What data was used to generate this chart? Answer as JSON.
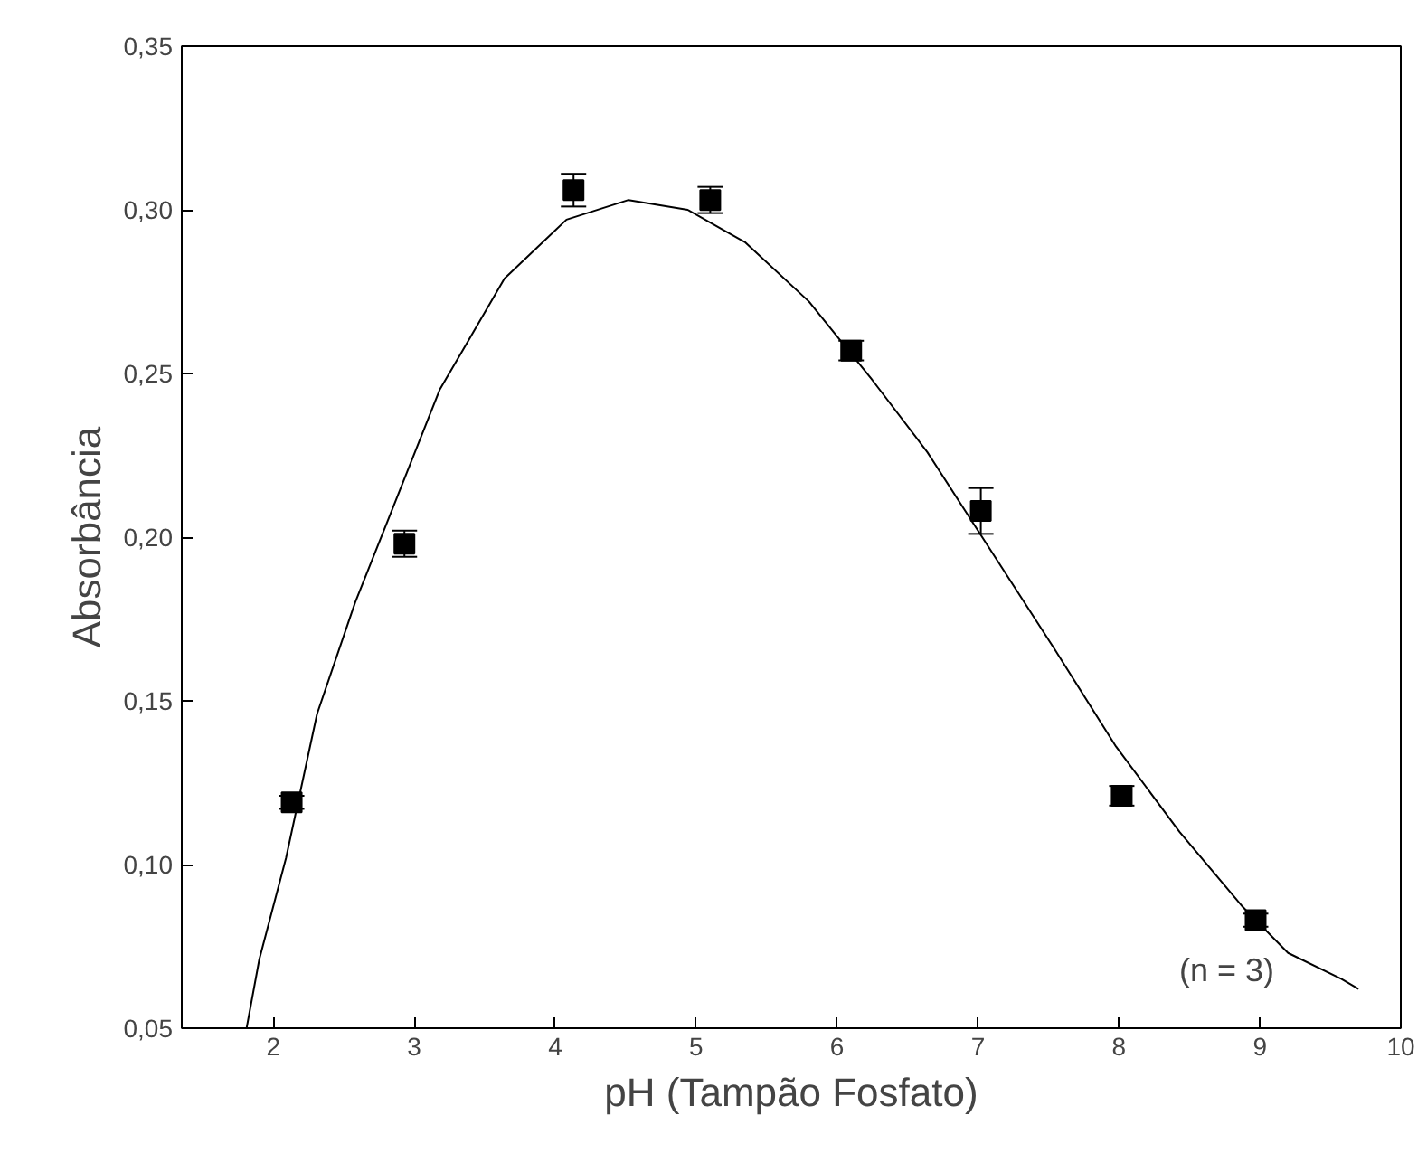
{
  "chart_data": {
    "type": "scatter",
    "xlabel": "pH (Tampão Fosfato)",
    "ylabel": "Absorbância",
    "xlim": [
      1.35,
      10
    ],
    "ylim": [
      0.05,
      0.35
    ],
    "xticks": [
      2,
      3,
      4,
      5,
      6,
      7,
      8,
      9,
      10
    ],
    "yticks": [
      {
        "value": 0.05,
        "label": "0,05"
      },
      {
        "value": 0.1,
        "label": "0,10"
      },
      {
        "value": 0.15,
        "label": "0,15"
      },
      {
        "value": 0.2,
        "label": "0,20"
      },
      {
        "value": 0.25,
        "label": "0,25"
      },
      {
        "value": 0.3,
        "label": "0,30"
      },
      {
        "value": 0.35,
        "label": "0,35"
      }
    ],
    "grid": false,
    "annotations": [
      "(n = 3)"
    ],
    "series": [
      {
        "marker": "square",
        "color": "#000000",
        "x": [
          2.13,
          2.93,
          4.13,
          5.1,
          6.1,
          7.02,
          8.02,
          8.97
        ],
        "values": [
          0.119,
          0.198,
          0.306,
          0.303,
          0.257,
          0.208,
          0.121,
          0.083
        ],
        "errors": [
          0.002,
          0.004,
          0.005,
          0.004,
          0.003,
          0.007,
          0.003,
          0.002
        ]
      },
      {
        "type": "line",
        "marker": "none",
        "color": "#000000",
        "x": [
          1.81,
          1.9,
          2.09,
          2.31,
          2.58,
          2.83,
          3.18,
          3.64,
          4.08,
          4.52,
          4.94,
          5.35,
          5.8,
          6.25,
          6.64,
          7.09,
          7.54,
          7.98,
          8.43,
          8.88,
          9.2,
          9.58,
          9.7
        ],
        "values": [
          0.05,
          0.071,
          0.102,
          0.146,
          0.18,
          0.207,
          0.245,
          0.279,
          0.297,
          0.303,
          0.3,
          0.29,
          0.272,
          0.248,
          0.226,
          0.196,
          0.166,
          0.136,
          0.11,
          0.087,
          0.073,
          0.065,
          0.062
        ]
      }
    ]
  }
}
